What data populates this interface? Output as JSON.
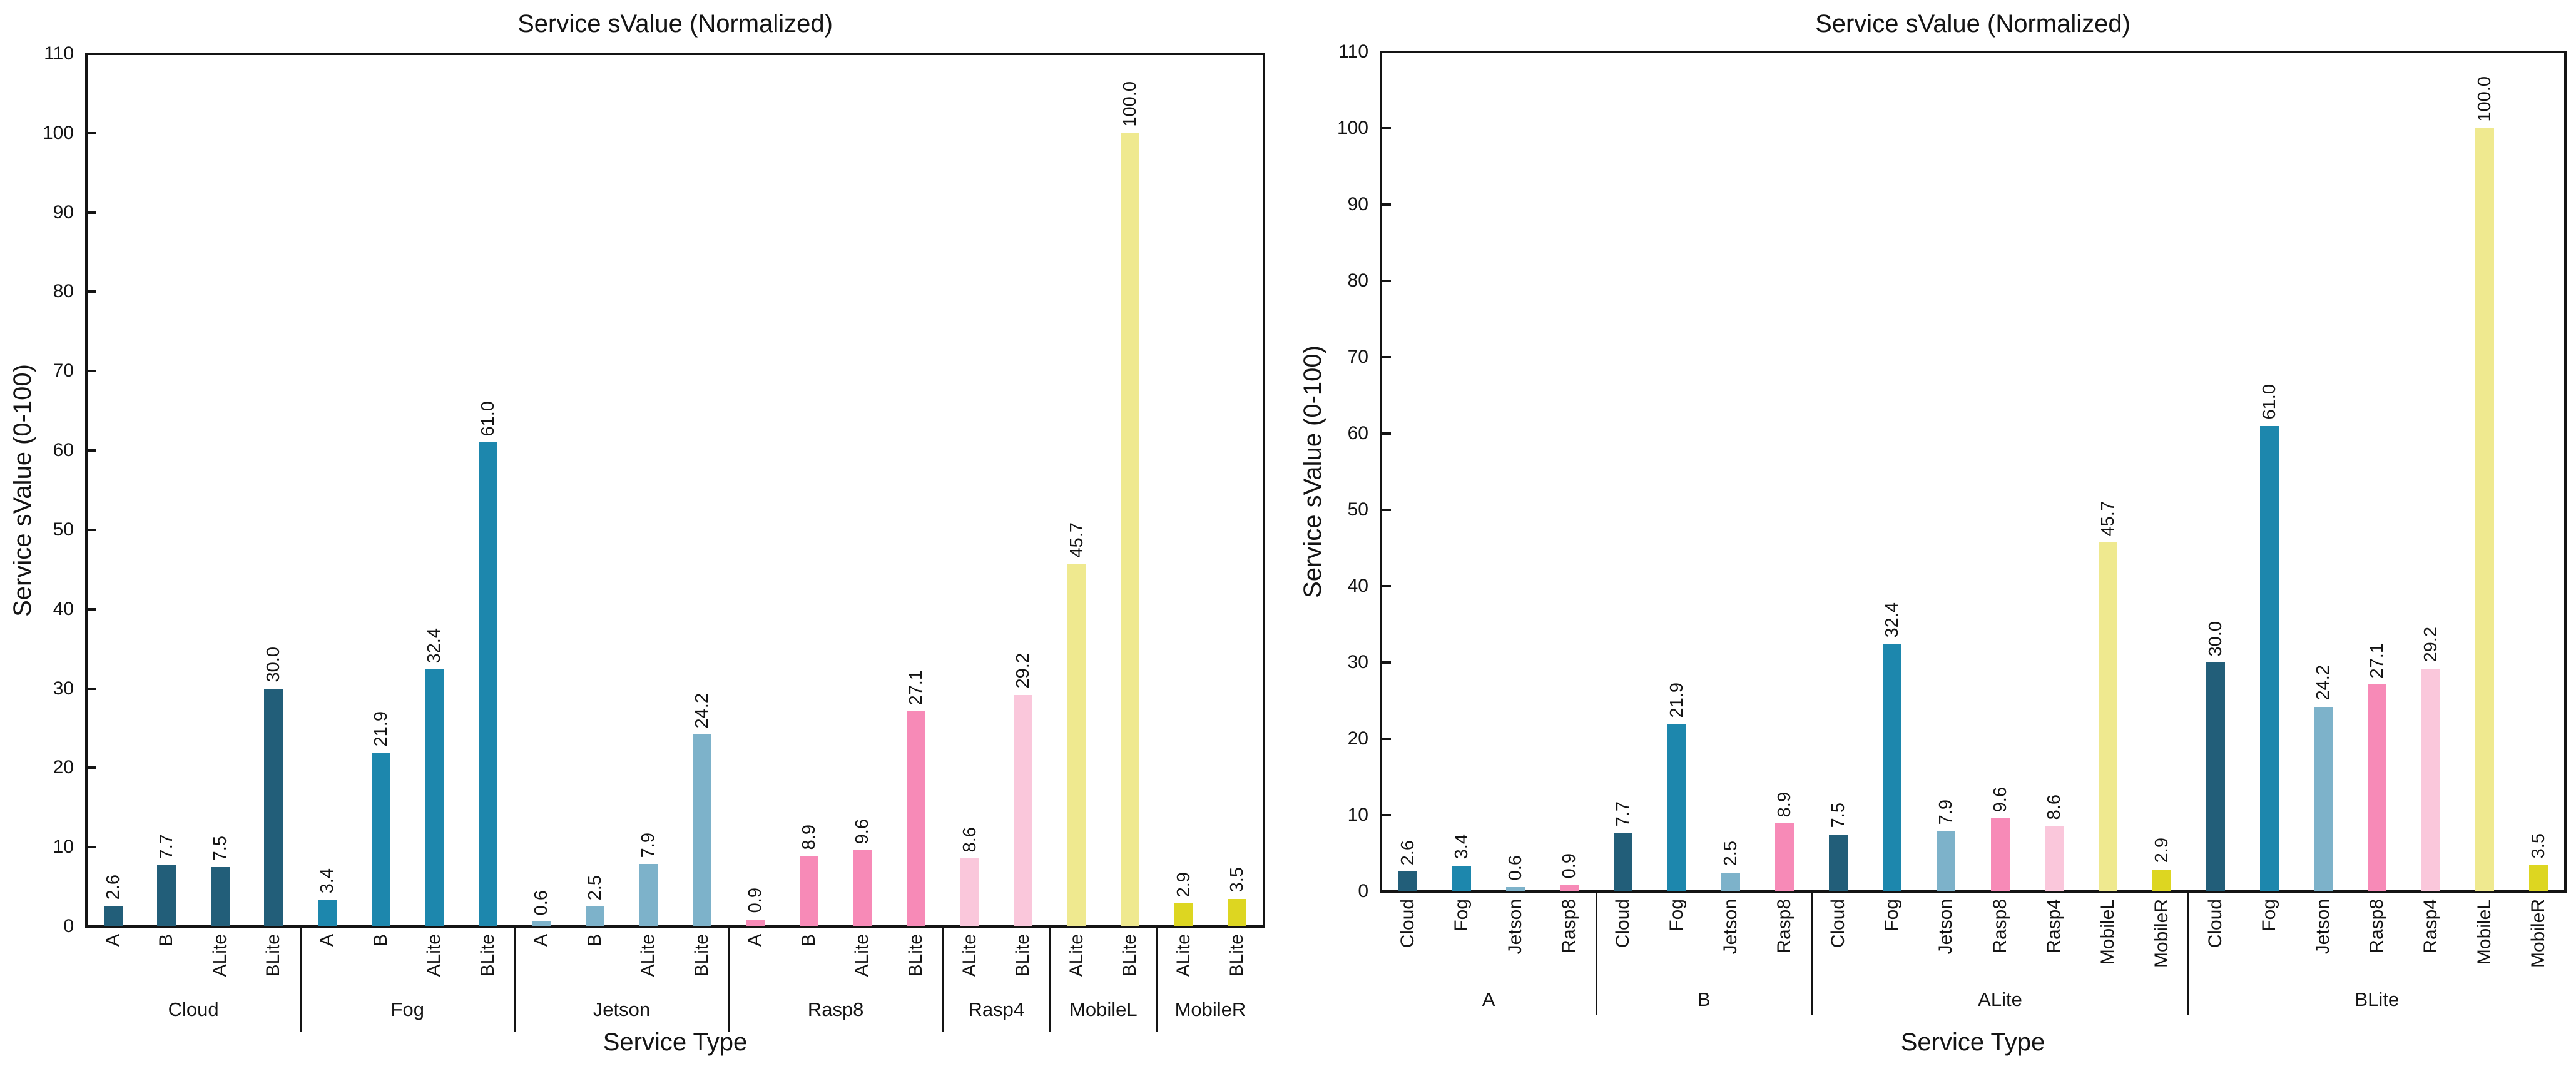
{
  "page": {
    "background": "#ffffff",
    "text_color": "#141414",
    "axis_color": "#141414"
  },
  "palette": {
    "Cloud": "#225e79",
    "Fog": "#1d87ad",
    "Jetson": "#7db2ca",
    "Rasp8": "#f78ab7",
    "Rasp4": "#fac7db",
    "MobileL": "#efe98f",
    "MobileR": "#ddd621"
  },
  "chart_data": [
    {
      "type": "bar",
      "title": "Service sValue (Normalized)",
      "xlabel": "Service Type",
      "ylabel": "Service sValue (0-100)",
      "ylim": [
        0,
        110
      ],
      "yticks": [
        0,
        10,
        20,
        30,
        40,
        50,
        60,
        70,
        80,
        90,
        100,
        110
      ],
      "grid": false,
      "legend": "none",
      "value_label_decimals": 1,
      "groups": [
        {
          "label": "Cloud",
          "bars": [
            {
              "label": "A",
              "color_key": "Cloud",
              "value": 2.6
            },
            {
              "label": "B",
              "color_key": "Cloud",
              "value": 7.7
            },
            {
              "label": "ALite",
              "color_key": "Cloud",
              "value": 7.5
            },
            {
              "label": "BLite",
              "color_key": "Cloud",
              "value": 30.0
            }
          ]
        },
        {
          "label": "Fog",
          "bars": [
            {
              "label": "A",
              "color_key": "Fog",
              "value": 3.4
            },
            {
              "label": "B",
              "color_key": "Fog",
              "value": 21.9
            },
            {
              "label": "ALite",
              "color_key": "Fog",
              "value": 32.4
            },
            {
              "label": "BLite",
              "color_key": "Fog",
              "value": 61.0
            }
          ]
        },
        {
          "label": "Jetson",
          "bars": [
            {
              "label": "A",
              "color_key": "Jetson",
              "value": 0.6
            },
            {
              "label": "B",
              "color_key": "Jetson",
              "value": 2.5
            },
            {
              "label": "ALite",
              "color_key": "Jetson",
              "value": 7.9
            },
            {
              "label": "BLite",
              "color_key": "Jetson",
              "value": 24.2
            }
          ]
        },
        {
          "label": "Rasp8",
          "bars": [
            {
              "label": "A",
              "color_key": "Rasp8",
              "value": 0.9
            },
            {
              "label": "B",
              "color_key": "Rasp8",
              "value": 8.9
            },
            {
              "label": "ALite",
              "color_key": "Rasp8",
              "value": 9.6
            },
            {
              "label": "BLite",
              "color_key": "Rasp8",
              "value": 27.1
            }
          ]
        },
        {
          "label": "Rasp4",
          "bars": [
            {
              "label": "ALite",
              "color_key": "Rasp4",
              "value": 8.6
            },
            {
              "label": "BLite",
              "color_key": "Rasp4",
              "value": 29.2
            }
          ]
        },
        {
          "label": "MobileL",
          "bars": [
            {
              "label": "ALite",
              "color_key": "MobileL",
              "value": 45.7
            },
            {
              "label": "BLite",
              "color_key": "MobileL",
              "value": 100.0
            }
          ]
        },
        {
          "label": "MobileR",
          "bars": [
            {
              "label": "ALite",
              "color_key": "MobileR",
              "value": 2.9
            },
            {
              "label": "BLite",
              "color_key": "MobileR",
              "value": 3.5
            }
          ]
        }
      ]
    },
    {
      "type": "bar",
      "title": "Service sValue (Normalized)",
      "xlabel": "Service Type",
      "ylabel": "Service sValue (0-100)",
      "ylim": [
        0,
        110
      ],
      "yticks": [
        0,
        10,
        20,
        30,
        40,
        50,
        60,
        70,
        80,
        90,
        100,
        110
      ],
      "grid": false,
      "legend": "none",
      "value_label_decimals": 1,
      "groups": [
        {
          "label": "A",
          "bars": [
            {
              "label": "Cloud",
              "color_key": "Cloud",
              "value": 2.6
            },
            {
              "label": "Fog",
              "color_key": "Fog",
              "value": 3.4
            },
            {
              "label": "Jetson",
              "color_key": "Jetson",
              "value": 0.6
            },
            {
              "label": "Rasp8",
              "color_key": "Rasp8",
              "value": 0.9
            }
          ]
        },
        {
          "label": "B",
          "bars": [
            {
              "label": "Cloud",
              "color_key": "Cloud",
              "value": 7.7
            },
            {
              "label": "Fog",
              "color_key": "Fog",
              "value": 21.9
            },
            {
              "label": "Jetson",
              "color_key": "Jetson",
              "value": 2.5
            },
            {
              "label": "Rasp8",
              "color_key": "Rasp8",
              "value": 8.9
            }
          ]
        },
        {
          "label": "ALite",
          "bars": [
            {
              "label": "Cloud",
              "color_key": "Cloud",
              "value": 7.5
            },
            {
              "label": "Fog",
              "color_key": "Fog",
              "value": 32.4
            },
            {
              "label": "Jetson",
              "color_key": "Jetson",
              "value": 7.9
            },
            {
              "label": "Rasp8",
              "color_key": "Rasp8",
              "value": 9.6
            },
            {
              "label": "Rasp4",
              "color_key": "Rasp4",
              "value": 8.6
            },
            {
              "label": "MobileL",
              "color_key": "MobileL",
              "value": 45.7
            },
            {
              "label": "MobileR",
              "color_key": "MobileR",
              "value": 2.9
            }
          ]
        },
        {
          "label": "BLite",
          "bars": [
            {
              "label": "Cloud",
              "color_key": "Cloud",
              "value": 30.0
            },
            {
              "label": "Fog",
              "color_key": "Fog",
              "value": 61.0
            },
            {
              "label": "Jetson",
              "color_key": "Jetson",
              "value": 24.2
            },
            {
              "label": "Rasp8",
              "color_key": "Rasp8",
              "value": 27.1
            },
            {
              "label": "Rasp4",
              "color_key": "Rasp4",
              "value": 29.2
            },
            {
              "label": "MobileL",
              "color_key": "MobileL",
              "value": 100.0
            },
            {
              "label": "MobileR",
              "color_key": "MobileR",
              "value": 3.5
            }
          ]
        }
      ]
    }
  ]
}
